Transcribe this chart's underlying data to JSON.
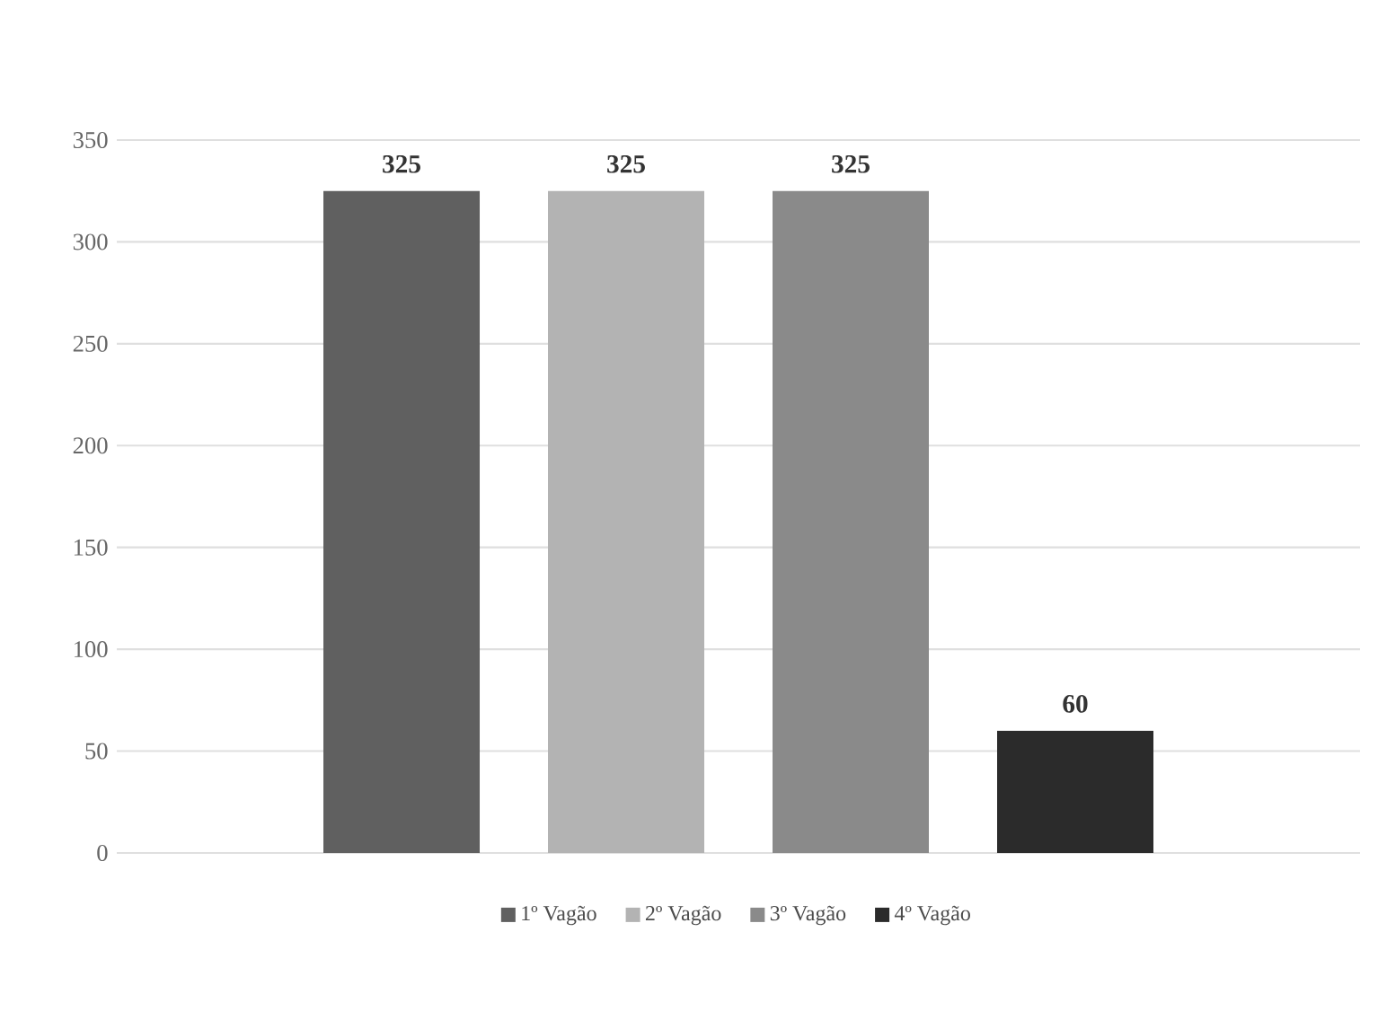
{
  "chart_data": {
    "type": "bar",
    "categories": [
      null
    ],
    "series": [
      {
        "name": "1º Vagão",
        "color": "#606060",
        "values": [
          325
        ]
      },
      {
        "name": "2º Vagão",
        "color": "#b3b3b3",
        "values": [
          325
        ]
      },
      {
        "name": "3º Vagão",
        "color": "#8a8a8a",
        "values": [
          325
        ]
      },
      {
        "name": "4º Vagão",
        "color": "#2b2b2b",
        "values": [
          60
        ]
      }
    ],
    "ylim": [
      0,
      350
    ],
    "yticks": [
      0,
      50,
      100,
      150,
      200,
      250,
      300,
      350
    ],
    "grid": "y",
    "legend": "bottom",
    "data_labels": true
  }
}
